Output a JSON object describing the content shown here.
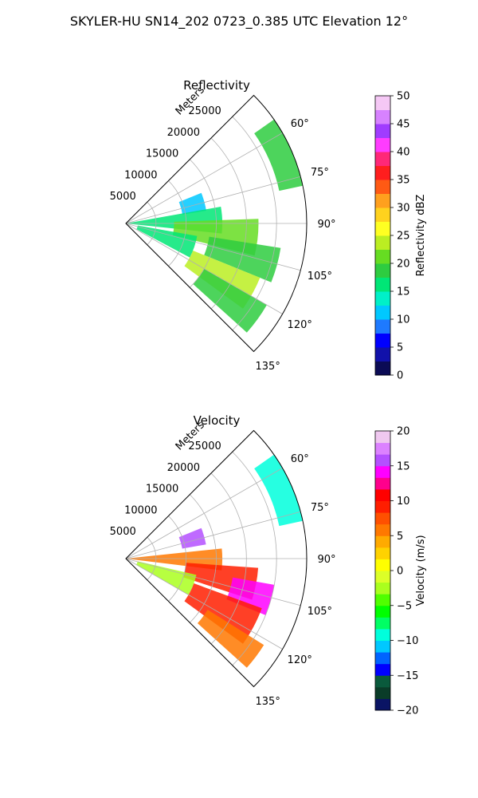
{
  "figure": {
    "title": "SKYLER-HU  SN14_202  0723_0.385 UTC Elevation 12°"
  },
  "chart_data": [
    {
      "type": "heatmap",
      "projection": "polar-sector",
      "title": "Reflectivity",
      "radial_axis_label": "Meters",
      "radial_ticks": [
        5000,
        10000,
        15000,
        20000,
        25000
      ],
      "radial_tick_labels": [
        "5000",
        "10000",
        "15000",
        "20000",
        "25000"
      ],
      "r_max": 30000,
      "azimuth_range_deg": [
        45,
        135
      ],
      "azimuth_ticks_deg": [
        60,
        75,
        90,
        105,
        120,
        135
      ],
      "azimuth_tick_labels": [
        "60°",
        "75°",
        "90°",
        "105°",
        "120°",
        "135°"
      ],
      "grid": true,
      "colorbar": {
        "label": "Reflectivity dBZ",
        "min": 0,
        "max": 50,
        "ticks": [
          0,
          5,
          10,
          15,
          20,
          25,
          30,
          35,
          40,
          45,
          50
        ],
        "tick_labels": [
          "0",
          "5",
          "10",
          "15",
          "20",
          "25",
          "30",
          "35",
          "40",
          "45",
          "50"
        ],
        "colors": [
          "#0b0b55",
          "#1111aa",
          "#0000ff",
          "#1e7aff",
          "#00c8ff",
          "#00f0c8",
          "#00e676",
          "#2ecc40",
          "#66dd22",
          "#bbee22",
          "#ffff22",
          "#ffd21e",
          "#ffa01e",
          "#ff5a14",
          "#ff1e1e",
          "#ff2878",
          "#ff3cff",
          "#a03cff",
          "#d782ff",
          "#f5c8f5"
        ]
      },
      "echo_regions": [
        {
          "az_deg": [
            55,
            78
          ],
          "r_m": [
            26000,
            30000
          ],
          "value": 18
        },
        {
          "az_deg": [
            68,
            81
          ],
          "r_m": [
            9500,
            13500
          ],
          "value": 10
        },
        {
          "az_deg": [
            80,
            96
          ],
          "r_m": [
            0,
            16000
          ],
          "value": 17
        },
        {
          "az_deg": [
            88,
            104
          ],
          "r_m": [
            8000,
            22000
          ],
          "value": 20
        },
        {
          "az_deg": [
            99,
            112
          ],
          "r_m": [
            14000,
            26000
          ],
          "value": 19
        },
        {
          "az_deg": [
            112,
            126
          ],
          "r_m": [
            12000,
            24000
          ],
          "value": 24
        },
        {
          "az_deg": [
            100,
            118
          ],
          "r_m": [
            2000,
            12000
          ],
          "value": 15
        },
        {
          "az_deg": [
            120,
            132
          ],
          "r_m": [
            15000,
            27000
          ],
          "value": 18
        }
      ]
    },
    {
      "type": "heatmap",
      "projection": "polar-sector",
      "title": "Velocity",
      "radial_axis_label": "Meters",
      "radial_ticks": [
        5000,
        10000,
        15000,
        20000,
        25000
      ],
      "radial_tick_labels": [
        "5000",
        "10000",
        "15000",
        "20000",
        "25000"
      ],
      "r_max": 30000,
      "azimuth_range_deg": [
        45,
        135
      ],
      "azimuth_ticks_deg": [
        60,
        75,
        90,
        105,
        120,
        135
      ],
      "azimuth_tick_labels": [
        "60°",
        "75°",
        "90°",
        "105°",
        "120°",
        "135°"
      ],
      "grid": true,
      "colorbar": {
        "label": "Velocity (m/s)",
        "min": -20,
        "max": 20,
        "ticks": [
          -20,
          -15,
          -10,
          -5,
          0,
          5,
          10,
          15,
          20
        ],
        "tick_labels": [
          "−20",
          "−15",
          "−10",
          "−5",
          "0",
          "5",
          "10",
          "15",
          "20"
        ],
        "colors": [
          "#0a1464",
          "#0a3c28",
          "#0a5a3c",
          "#0000ff",
          "#0064ff",
          "#00c8ff",
          "#00ffdc",
          "#00ff64",
          "#00ff00",
          "#50ff00",
          "#aaff1e",
          "#dcff28",
          "#ffff00",
          "#ffd200",
          "#ffaa00",
          "#ff7800",
          "#ff5000",
          "#ff1e00",
          "#ff0000",
          "#ff008c",
          "#ff00ff",
          "#b450ff",
          "#dc82ff",
          "#f0c8f0"
        ]
      },
      "echo_regions": [
        {
          "az_deg": [
            55,
            78
          ],
          "r_m": [
            26000,
            30000
          ],
          "value": -9
        },
        {
          "az_deg": [
            68,
            80
          ],
          "r_m": [
            9500,
            13500
          ],
          "value": 15
        },
        {
          "az_deg": [
            84,
            97
          ],
          "r_m": [
            0,
            16000
          ],
          "value": 5
        },
        {
          "az_deg": [
            94,
            108
          ],
          "r_m": [
            10000,
            22000
          ],
          "value": 9
        },
        {
          "az_deg": [
            100,
            112
          ],
          "r_m": [
            18000,
            25000
          ],
          "value": 14
        },
        {
          "az_deg": [
            110,
            126
          ],
          "r_m": [
            12000,
            24000
          ],
          "value": 9
        },
        {
          "az_deg": [
            103,
            120
          ],
          "r_m": [
            2000,
            12000
          ],
          "value": -2
        },
        {
          "az_deg": [
            122,
            132
          ],
          "r_m": [
            16000,
            27000
          ],
          "value": 5
        }
      ]
    }
  ]
}
